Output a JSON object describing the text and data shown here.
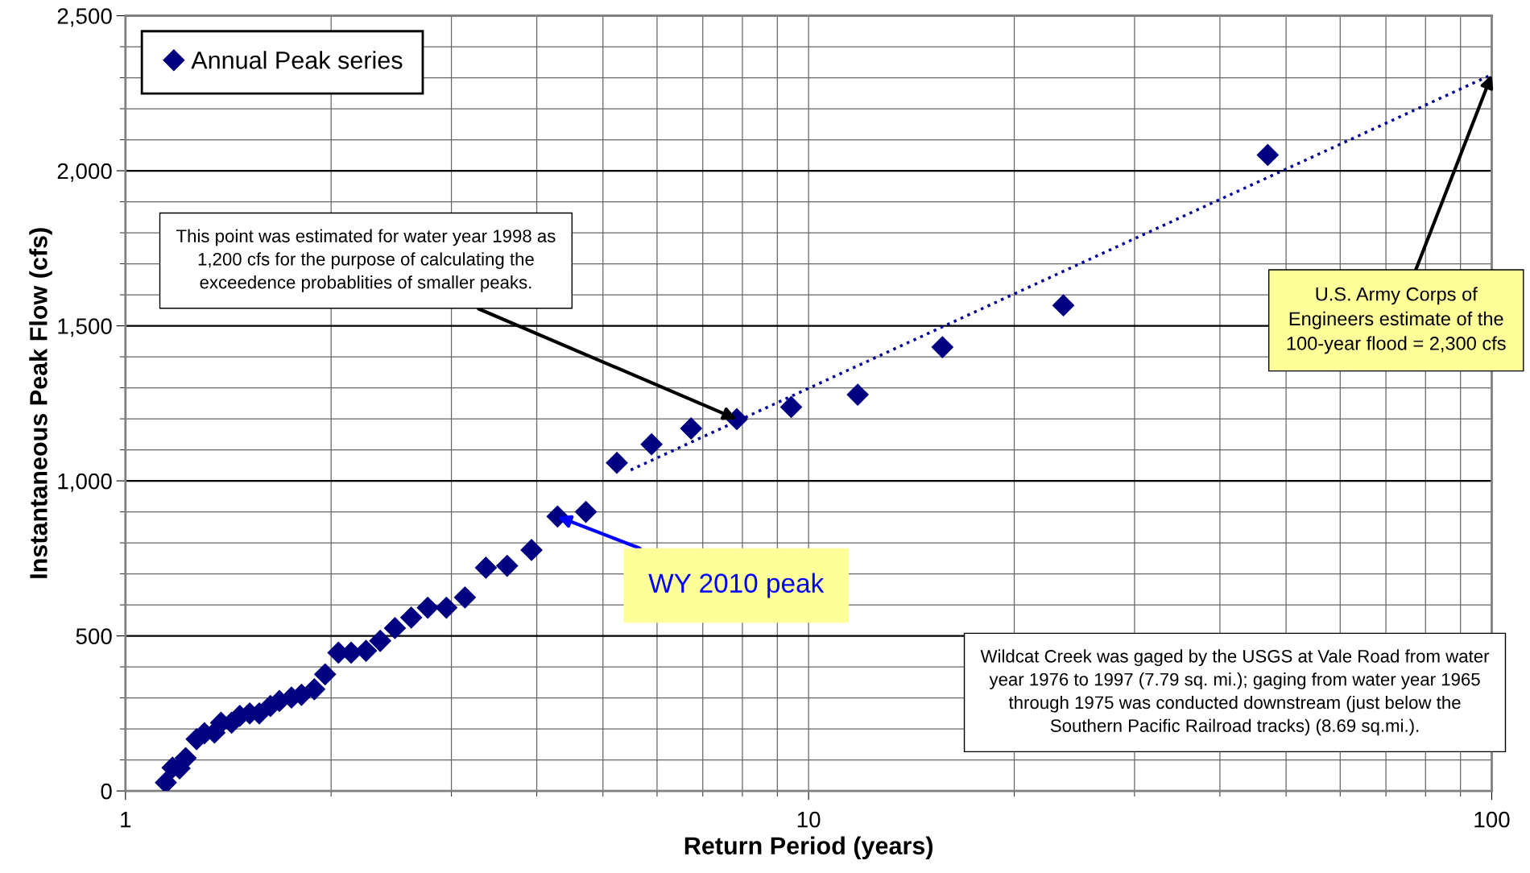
{
  "chart_data": {
    "type": "scatter",
    "xlabel": "Return Period (years)",
    "ylabel": "Instantaneous Peak Flow (cfs)",
    "log": "x",
    "xlim": [
      1,
      100
    ],
    "xticks": [
      1,
      10,
      100
    ],
    "ylim": [
      0,
      2500
    ],
    "yticks": [
      0,
      500,
      {
        "value": 1000,
        "label": "1,000"
      },
      {
        "value": 1500,
        "label": "1,500"
      },
      {
        "value": 2000,
        "label": "2,000"
      },
      {
        "value": 2500,
        "label": "2,500"
      }
    ],
    "grid": true,
    "legend": "top left",
    "marker": "diamond",
    "series": [
      {
        "name": "Annual Peak series",
        "color": "#000080",
        "x": [
          1.146,
          1.172,
          1.2,
          1.225,
          1.271,
          1.305,
          1.35,
          1.38,
          1.43,
          1.47,
          1.52,
          1.57,
          1.63,
          1.68,
          1.75,
          1.81,
          1.89,
          1.96,
          2.05,
          2.14,
          2.25,
          2.36,
          2.48,
          2.62,
          2.77,
          2.95,
          3.14,
          3.37,
          3.62,
          3.93,
          4.29,
          4.72,
          5.24,
          5.89,
          6.73,
          7.85,
          9.43,
          11.8,
          15.7,
          23.6,
          47.0
        ],
        "values": [
          27,
          75,
          73,
          106,
          167,
          186,
          188,
          220,
          220,
          242,
          250,
          250,
          274,
          290,
          301,
          310,
          328,
          376,
          446,
          446,
          452,
          484,
          525,
          559,
          591,
          591,
          624,
          720,
          726,
          777,
          885,
          900,
          1058,
          1118,
          1169,
          1199,
          1238,
          1278,
          1431,
          1566,
          2051
        ]
      },
      {
        "type": "line",
        "color": "#000099",
        "line_style": "dotted",
        "marker": "none",
        "x": [
          5.49,
          100
        ],
        "values": [
          1035,
          2310
        ]
      }
    ],
    "annotations": [
      {
        "text": "This point was estimated for water year 1998 as\n1,200 cfs for the purpose of calculating the\nexceedence probablities of smaller peaks.",
        "x": 7.85,
        "y": 1199
      },
      {
        "text": "WY 2010 peak",
        "x": 4.29,
        "y": 885
      },
      {
        "text": "U.S. Army Corps of\nEngineers estimate of the\n100-year flood = 2,300 cfs",
        "x": 100,
        "y": 2310
      },
      "Wildcat Creek was gaged by the USGS at Vale Road from water\nyear 1976 to 1997 (7.79 sq. mi.); gaging from water year 1965\nthrough 1975 was conducted downstream (just below the\nSouthern Pacific Railroad tracks) (8.69 sq.mi.)."
    ]
  }
}
